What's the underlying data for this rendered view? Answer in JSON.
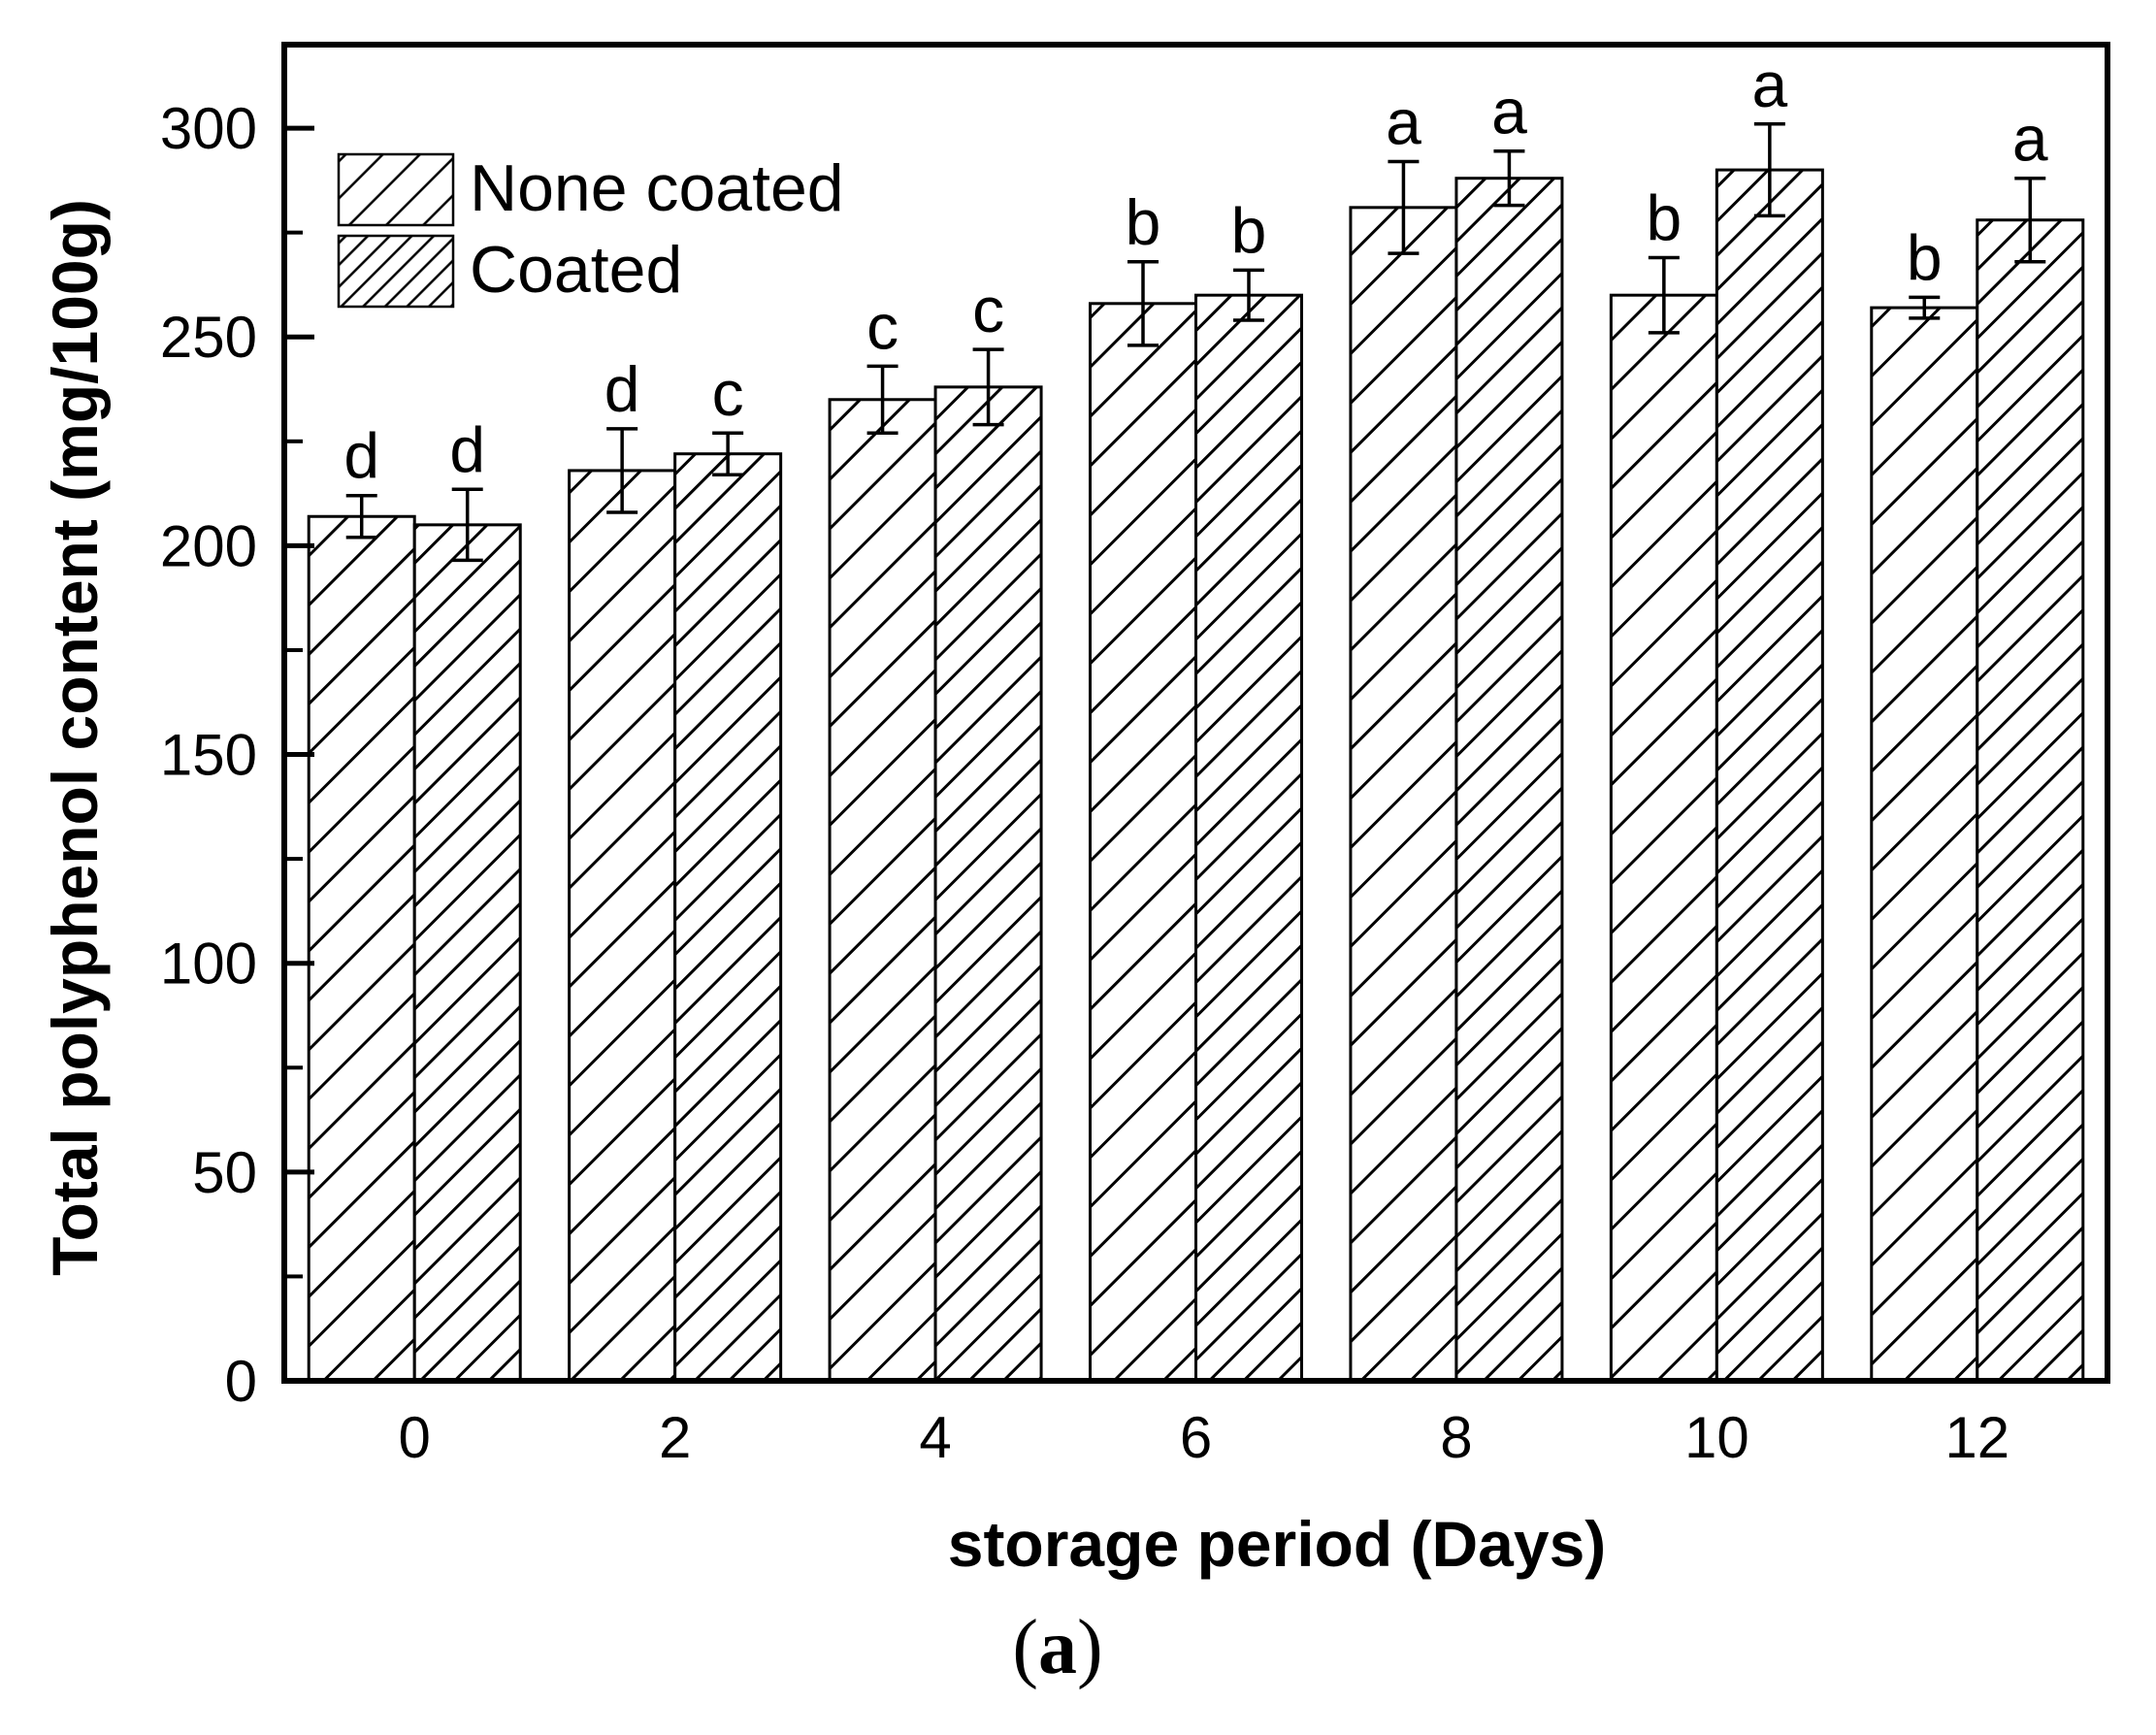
{
  "caption": {
    "open": "(",
    "letter": "a",
    "close": ")"
  },
  "legend": {
    "items": [
      {
        "label": "None coated",
        "swatch": "wide-diagonal-hatch"
      },
      {
        "label": "Coated",
        "swatch": "dense-diagonal-hatch"
      }
    ]
  },
  "axes": {
    "y": {
      "title": "Total polyphenol content  (mg/100g)",
      "min": 0,
      "max": 320,
      "major_ticks": [
        0,
        50,
        100,
        150,
        200,
        250,
        300
      ],
      "minor_step": 25
    },
    "x": {
      "title": "storage period (Days)",
      "tick_labels": [
        "0",
        "2",
        "4",
        "6",
        "8",
        "10",
        "12"
      ]
    }
  },
  "chart_data": {
    "type": "bar",
    "categories": [
      0,
      2,
      4,
      6,
      8,
      10,
      12
    ],
    "series": [
      {
        "name": "None coated",
        "values": [
          207,
          218,
          235,
          258,
          281,
          260,
          257
        ],
        "errors": [
          5,
          10,
          8,
          10,
          11,
          9,
          2.5
        ],
        "letters": [
          "d",
          "d",
          "c",
          "b",
          "a",
          "b",
          "b"
        ]
      },
      {
        "name": "Coated",
        "values": [
          205,
          222,
          238,
          260,
          288,
          290,
          278
        ],
        "errors": [
          8.5,
          5,
          9,
          6,
          6.5,
          11,
          10
        ],
        "letters": [
          "d",
          "c",
          "c",
          "b",
          "a",
          "a",
          "a"
        ]
      }
    ],
    "title": "",
    "xlabel": "storage period (Days)",
    "ylabel": "Total polyphenol content  (mg/100g)",
    "ylim": [
      0,
      320
    ],
    "grid": false,
    "legend_position": "top-left-inside",
    "bar_outline_color": "#000000",
    "bar_fill_color": "#ffffff"
  },
  "colors": {
    "ink": "#000000",
    "background": "#ffffff"
  }
}
